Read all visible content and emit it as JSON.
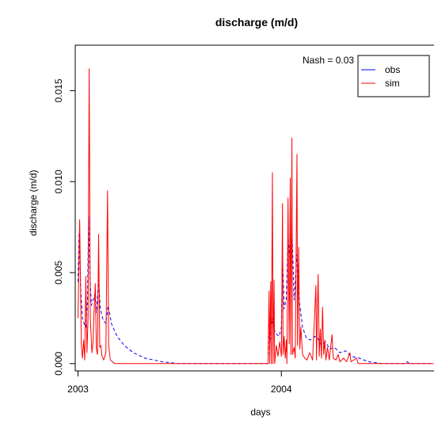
{
  "chart_data": {
    "type": "line",
    "title": "discharge (m/d)",
    "xlabel": "days",
    "ylabel": "discharge (m/d)",
    "xlim": [
      "2002-12-27",
      "2004-10-01"
    ],
    "ylim": [
      -0.0004,
      0.0175
    ],
    "x_ticks": [
      "2003",
      "2004"
    ],
    "y_ticks": [
      "0.000",
      "0.005",
      "0.010",
      "0.015"
    ],
    "annotation": "Nash =  0.03",
    "legend": {
      "position": "top-right",
      "entries": [
        "obs",
        "sim"
      ]
    },
    "colors": {
      "obs": "#0000ff",
      "sim": "#ff0000"
    },
    "series": [
      {
        "name": "sim",
        "color": "#ff0000",
        "style": "solid",
        "points": [
          [
            "2003-01-01",
            0.0025
          ],
          [
            "2003-01-04",
            0.0079
          ],
          [
            "2003-01-07",
            0.001
          ],
          [
            "2003-01-09",
            0.0003
          ],
          [
            "2003-01-11",
            0.0013
          ],
          [
            "2003-01-13",
            0.0002
          ],
          [
            "2003-01-15",
            0.0048
          ],
          [
            "2003-01-17",
            0.0006
          ],
          [
            "2003-01-19",
            0.0025
          ],
          [
            "2003-01-21",
            0.0162
          ],
          [
            "2003-01-23",
            0.0025
          ],
          [
            "2003-01-26",
            0.0006
          ],
          [
            "2003-01-28",
            0.0012
          ],
          [
            "2003-01-30",
            0.003
          ],
          [
            "2003-02-01",
            0.0044
          ],
          [
            "2003-02-03",
            0.0008
          ],
          [
            "2003-02-05",
            0.0005
          ],
          [
            "2003-02-07",
            0.0071
          ],
          [
            "2003-02-09",
            0.0009
          ],
          [
            "2003-02-11",
            0.001
          ],
          [
            "2003-02-13",
            0.0004
          ],
          [
            "2003-02-16",
            0.0002
          ],
          [
            "2003-02-20",
            0.0006
          ],
          [
            "2003-02-23",
            0.0095
          ],
          [
            "2003-02-25",
            0.001
          ],
          [
            "2003-02-28",
            0.0002
          ],
          [
            "2003-03-08",
            0.0
          ],
          [
            "2003-12-08",
            0.0
          ],
          [
            "2003-12-10",
            0.004
          ],
          [
            "2003-12-11",
            0.0
          ],
          [
            "2003-12-13",
            0.0045
          ],
          [
            "2003-12-14",
            0.0
          ],
          [
            "2003-12-16",
            0.0105
          ],
          [
            "2003-12-17",
            0.0
          ],
          [
            "2003-12-19",
            0.0046
          ],
          [
            "2003-12-20",
            0.0
          ],
          [
            "2003-12-23",
            0.001
          ],
          [
            "2003-12-26",
            0.0004
          ],
          [
            "2003-12-29",
            0.0012
          ],
          [
            "2004-01-01",
            0.0004
          ],
          [
            "2004-01-03",
            0.0088
          ],
          [
            "2004-01-04",
            0.0005
          ],
          [
            "2004-01-06",
            0.0015
          ],
          [
            "2004-01-08",
            0.0003
          ],
          [
            "2004-01-10",
            0.0013
          ],
          [
            "2004-01-11",
            0.0
          ],
          [
            "2004-01-13",
            0.0091
          ],
          [
            "2004-01-15",
            0.0011
          ],
          [
            "2004-01-17",
            0.0102
          ],
          [
            "2004-01-18",
            0.0005
          ],
          [
            "2004-01-20",
            0.0124
          ],
          [
            "2004-01-21",
            0.0005
          ],
          [
            "2004-01-24",
            0.0009
          ],
          [
            "2004-01-26",
            0.0003
          ],
          [
            "2004-01-29",
            0.0115
          ],
          [
            "2004-01-30",
            0.001
          ],
          [
            "2004-02-01",
            0.0064
          ],
          [
            "2004-02-03",
            0.0008
          ],
          [
            "2004-02-05",
            0.002
          ],
          [
            "2004-02-08",
            0.0005
          ],
          [
            "2004-02-12",
            0.0003
          ],
          [
            "2004-02-16",
            0.0002
          ],
          [
            "2004-02-21",
            0.0006
          ],
          [
            "2004-02-26",
            0.0002
          ],
          [
            "2004-03-03",
            0.0043
          ],
          [
            "2004-03-04",
            0.0002
          ],
          [
            "2004-03-07",
            0.0049
          ],
          [
            "2004-03-09",
            0.0004
          ],
          [
            "2004-03-11",
            0.0019
          ],
          [
            "2004-03-13",
            0.0003
          ],
          [
            "2004-03-15",
            0.0031
          ],
          [
            "2004-03-17",
            0.0005
          ],
          [
            "2004-03-19",
            0.0013
          ],
          [
            "2004-03-21",
            0.0002
          ],
          [
            "2004-03-24",
            0.0009
          ],
          [
            "2004-03-27",
            0.0002
          ],
          [
            "2004-04-01",
            0.0016
          ],
          [
            "2004-04-03",
            0.0003
          ],
          [
            "2004-04-08",
            0.0002
          ],
          [
            "2004-04-12",
            0.0005
          ],
          [
            "2004-04-15",
            0.0001
          ],
          [
            "2004-04-22",
            0.0003
          ],
          [
            "2004-04-27",
            0.0001
          ],
          [
            "2004-05-03",
            0.0006
          ],
          [
            "2004-05-05",
            0.0001
          ],
          [
            "2004-05-15",
            0.0003
          ],
          [
            "2004-05-18",
            0.0
          ],
          [
            "2004-09-30",
            0.0
          ]
        ]
      },
      {
        "name": "obs",
        "color": "#0000ff",
        "style": "dashed",
        "points": [
          [
            "2003-01-01",
            0.0045
          ],
          [
            "2003-01-03",
            0.0072
          ],
          [
            "2003-01-06",
            0.004
          ],
          [
            "2003-01-09",
            0.0025
          ],
          [
            "2003-01-12",
            0.0022
          ],
          [
            "2003-01-15",
            0.002
          ],
          [
            "2003-01-18",
            0.0035
          ],
          [
            "2003-01-20",
            0.0081
          ],
          [
            "2003-01-22",
            0.005
          ],
          [
            "2003-01-25",
            0.0032
          ],
          [
            "2003-01-28",
            0.0035
          ],
          [
            "2003-01-31",
            0.0038
          ],
          [
            "2003-02-03",
            0.0028
          ],
          [
            "2003-02-07",
            0.0046
          ],
          [
            "2003-02-10",
            0.003
          ],
          [
            "2003-02-15",
            0.0024
          ],
          [
            "2003-02-20",
            0.0022
          ],
          [
            "2003-02-24",
            0.0032
          ],
          [
            "2003-03-02",
            0.0022
          ],
          [
            "2003-03-12",
            0.0015
          ],
          [
            "2003-03-25",
            0.001
          ],
          [
            "2003-04-10",
            0.0006
          ],
          [
            "2003-05-01",
            0.0003
          ],
          [
            "2003-06-01",
            0.0001
          ],
          [
            "2003-07-01",
            0.0
          ],
          [
            "2003-12-08",
            0.0
          ],
          [
            "2003-12-09",
            0.0015
          ],
          [
            "2003-12-12",
            0.0013
          ],
          [
            "2003-12-16",
            0.0025
          ],
          [
            "2003-12-20",
            0.0018
          ],
          [
            "2003-12-24",
            0.0016
          ],
          [
            "2003-12-28",
            0.0015
          ],
          [
            "2004-01-01",
            0.002
          ],
          [
            "2004-01-03",
            0.006
          ],
          [
            "2004-01-06",
            0.003
          ],
          [
            "2004-01-10",
            0.0036
          ],
          [
            "2004-01-13",
            0.007
          ],
          [
            "2004-01-17",
            0.0055
          ],
          [
            "2004-01-20",
            0.0075
          ],
          [
            "2004-01-24",
            0.0035
          ],
          [
            "2004-01-29",
            0.006
          ],
          [
            "2004-02-02",
            0.0035
          ],
          [
            "2004-02-08",
            0.002
          ],
          [
            "2004-02-15",
            0.0014
          ],
          [
            "2004-02-22",
            0.0013
          ],
          [
            "2004-03-01",
            0.0015
          ],
          [
            "2004-03-06",
            0.0014
          ],
          [
            "2004-03-13",
            0.001
          ],
          [
            "2004-03-20",
            0.0012
          ],
          [
            "2004-03-28",
            0.0008
          ],
          [
            "2004-04-05",
            0.0009
          ],
          [
            "2004-04-15",
            0.0006
          ],
          [
            "2004-04-25",
            0.0007
          ],
          [
            "2004-05-05",
            0.0004
          ],
          [
            "2004-05-20",
            0.0003
          ],
          [
            "2004-06-05",
            0.0001
          ],
          [
            "2004-07-01",
            0.0
          ],
          [
            "2004-08-10",
            0.0
          ],
          [
            "2004-08-14",
            0.0001
          ],
          [
            "2004-08-18",
            0.0
          ],
          [
            "2004-09-30",
            0.0
          ]
        ]
      }
    ]
  }
}
